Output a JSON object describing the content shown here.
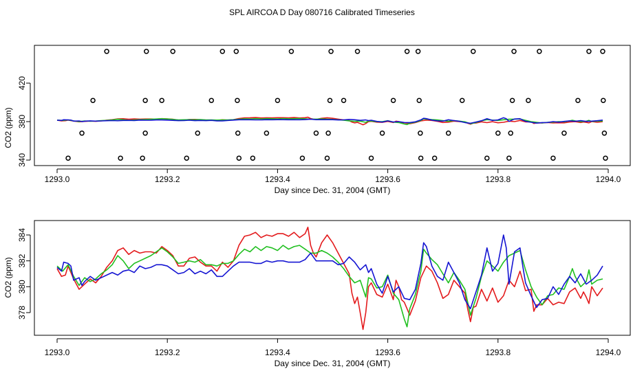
{
  "title": "SPL AIRCOA D  Day 080716  Calibrated Timeseries",
  "colors": {
    "series1": "#e31a1c",
    "series2": "#1fbf1f",
    "series3": "#1414d2",
    "axis": "#000000"
  },
  "chart_data": [
    {
      "type": "line",
      "title": "SPL AIRCOA D  Day 080716  Calibrated Timeseries",
      "xlabel": "Day since Dec. 31, 2004 (GMT)",
      "ylabel": "CO2 (ppm)",
      "xlim": [
        1293.0,
        1294.0
      ],
      "ylim": [
        337,
        460
      ],
      "xticks": [
        1293.0,
        1293.2,
        1293.4,
        1293.6,
        1293.8,
        1294.0
      ],
      "xtick_labels": [
        "1293.0",
        "1293.2",
        "1293.4",
        "1293.6",
        "1293.8",
        "1294.0"
      ],
      "yticks": [
        340,
        380,
        420
      ],
      "ytick_labels": [
        "340",
        "380",
        "420"
      ],
      "grid": false,
      "markers": {
        "style": "open-circle",
        "points": [
          [
            1293.02,
            342
          ],
          [
            1293.045,
            368
          ],
          [
            1293.065,
            402
          ],
          [
            1293.09,
            453
          ],
          [
            1293.115,
            342
          ],
          [
            1293.155,
            342
          ],
          [
            1293.16,
            368
          ],
          [
            1293.16,
            402
          ],
          [
            1293.162,
            453
          ],
          [
            1293.19,
            402
          ],
          [
            1293.21,
            453
          ],
          [
            1293.235,
            342
          ],
          [
            1293.255,
            368
          ],
          [
            1293.28,
            402
          ],
          [
            1293.3,
            453
          ],
          [
            1293.325,
            453
          ],
          [
            1293.327,
            402
          ],
          [
            1293.328,
            368
          ],
          [
            1293.33,
            342
          ],
          [
            1293.355,
            342
          ],
          [
            1293.38,
            368
          ],
          [
            1293.4,
            402
          ],
          [
            1293.425,
            453
          ],
          [
            1293.445,
            342
          ],
          [
            1293.47,
            368
          ],
          [
            1293.49,
            342
          ],
          [
            1293.492,
            368
          ],
          [
            1293.495,
            402
          ],
          [
            1293.497,
            453
          ],
          [
            1293.52,
            402
          ],
          [
            1293.545,
            453
          ],
          [
            1293.57,
            342
          ],
          [
            1293.59,
            368
          ],
          [
            1293.61,
            402
          ],
          [
            1293.635,
            453
          ],
          [
            1293.655,
            453
          ],
          [
            1293.657,
            402
          ],
          [
            1293.659,
            368
          ],
          [
            1293.66,
            342
          ],
          [
            1293.685,
            342
          ],
          [
            1293.71,
            368
          ],
          [
            1293.735,
            402
          ],
          [
            1293.755,
            453
          ],
          [
            1293.78,
            342
          ],
          [
            1293.8,
            368
          ],
          [
            1293.82,
            342
          ],
          [
            1293.823,
            368
          ],
          [
            1293.826,
            402
          ],
          [
            1293.829,
            453
          ],
          [
            1293.855,
            402
          ],
          [
            1293.875,
            453
          ],
          [
            1293.9,
            342
          ],
          [
            1293.92,
            368
          ],
          [
            1293.945,
            402
          ],
          [
            1293.965,
            453
          ],
          [
            1293.99,
            453
          ],
          [
            1293.991,
            402
          ],
          [
            1293.993,
            368
          ],
          [
            1293.995,
            342
          ]
        ]
      },
      "series": [
        {
          "values_ref": "series_red"
        },
        {
          "values_ref": "series_green"
        },
        {
          "values_ref": "series_blue"
        }
      ]
    },
    {
      "type": "line",
      "xlabel": "Day since Dec. 31, 2004 (GMT)",
      "ylabel": "CO2 (ppm)",
      "xlim": [
        1293.0,
        1294.0
      ],
      "ylim": [
        376.0,
        384.8
      ],
      "xticks": [
        1293.0,
        1293.2,
        1293.4,
        1293.6,
        1293.8,
        1294.0
      ],
      "xtick_labels": [
        "1293.0",
        "1293.2",
        "1293.4",
        "1293.6",
        "1293.8",
        "1294.0"
      ],
      "yticks": [
        378,
        380,
        382,
        384
      ],
      "ytick_labels": [
        "378",
        "380",
        "382",
        "384"
      ],
      "grid": false,
      "series": [
        {
          "values_ref": "series_red"
        },
        {
          "values_ref": "series_green"
        },
        {
          "values_ref": "series_blue"
        }
      ]
    }
  ],
  "series_red": [
    [
      1293.0,
      381.4
    ],
    [
      1293.008,
      380.8
    ],
    [
      1293.015,
      380.9
    ],
    [
      1293.02,
      381.6
    ],
    [
      1293.03,
      380.6
    ],
    [
      1293.04,
      379.8
    ],
    [
      1293.05,
      380.2
    ],
    [
      1293.06,
      380.6
    ],
    [
      1293.07,
      380.3
    ],
    [
      1293.08,
      380.8
    ],
    [
      1293.09,
      381.5
    ],
    [
      1293.1,
      382.0
    ],
    [
      1293.11,
      382.8
    ],
    [
      1293.12,
      383.0
    ],
    [
      1293.13,
      382.5
    ],
    [
      1293.14,
      382.8
    ],
    [
      1293.15,
      382.6
    ],
    [
      1293.16,
      382.7
    ],
    [
      1293.17,
      382.7
    ],
    [
      1293.18,
      382.6
    ],
    [
      1293.19,
      383.1
    ],
    [
      1293.2,
      382.8
    ],
    [
      1293.21,
      382.4
    ],
    [
      1293.22,
      381.6
    ],
    [
      1293.23,
      381.6
    ],
    [
      1293.24,
      382.2
    ],
    [
      1293.25,
      382.3
    ],
    [
      1293.26,
      381.9
    ],
    [
      1293.27,
      381.6
    ],
    [
      1293.28,
      381.6
    ],
    [
      1293.29,
      381.2
    ],
    [
      1293.3,
      381.9
    ],
    [
      1293.31,
      381.5
    ],
    [
      1293.32,
      382.0
    ],
    [
      1293.33,
      383.2
    ],
    [
      1293.34,
      383.9
    ],
    [
      1293.35,
      384.0
    ],
    [
      1293.36,
      384.2
    ],
    [
      1293.37,
      383.8
    ],
    [
      1293.38,
      384.0
    ],
    [
      1293.39,
      383.9
    ],
    [
      1293.4,
      384.1
    ],
    [
      1293.41,
      384.1
    ],
    [
      1293.42,
      383.9
    ],
    [
      1293.43,
      384.2
    ],
    [
      1293.44,
      383.8
    ],
    [
      1293.45,
      384.1
    ],
    [
      1293.455,
      384.6
    ],
    [
      1293.46,
      383.2
    ],
    [
      1293.465,
      382.6
    ],
    [
      1293.47,
      382.3
    ],
    [
      1293.48,
      383.4
    ],
    [
      1293.49,
      384.0
    ],
    [
      1293.5,
      383.4
    ],
    [
      1293.51,
      382.6
    ],
    [
      1293.52,
      381.8
    ],
    [
      1293.53,
      381.0
    ],
    [
      1293.535,
      379.5
    ],
    [
      1293.54,
      378.7
    ],
    [
      1293.545,
      379.2
    ],
    [
      1293.55,
      378.0
    ],
    [
      1293.555,
      376.7
    ],
    [
      1293.56,
      378.0
    ],
    [
      1293.565,
      380.0
    ],
    [
      1293.57,
      380.3
    ],
    [
      1293.58,
      379.4
    ],
    [
      1293.59,
      379.2
    ],
    [
      1293.6,
      380.2
    ],
    [
      1293.61,
      379.0
    ],
    [
      1293.615,
      380.5
    ],
    [
      1293.62,
      380.0
    ],
    [
      1293.625,
      379.0
    ],
    [
      1293.63,
      378.8
    ],
    [
      1293.64,
      377.8
    ],
    [
      1293.65,
      378.9
    ],
    [
      1293.66,
      380.7
    ],
    [
      1293.67,
      381.6
    ],
    [
      1293.68,
      381.2
    ],
    [
      1293.69,
      380.3
    ],
    [
      1293.7,
      379.1
    ],
    [
      1293.71,
      379.4
    ],
    [
      1293.72,
      380.5
    ],
    [
      1293.73,
      380.0
    ],
    [
      1293.74,
      379.5
    ],
    [
      1293.745,
      378.3
    ],
    [
      1293.75,
      377.3
    ],
    [
      1293.755,
      378.4
    ],
    [
      1293.76,
      378.5
    ],
    [
      1293.77,
      379.8
    ],
    [
      1293.78,
      378.9
    ],
    [
      1293.79,
      379.9
    ],
    [
      1293.8,
      378.8
    ],
    [
      1293.81,
      379.3
    ],
    [
      1293.82,
      380.5
    ],
    [
      1293.83,
      380.0
    ],
    [
      1293.84,
      381.2
    ],
    [
      1293.85,
      379.7
    ],
    [
      1293.86,
      379.8
    ],
    [
      1293.865,
      378.1
    ],
    [
      1293.87,
      378.6
    ],
    [
      1293.88,
      378.6
    ],
    [
      1293.89,
      379.1
    ],
    [
      1293.9,
      378.6
    ],
    [
      1293.91,
      378.8
    ],
    [
      1293.92,
      378.7
    ],
    [
      1293.93,
      379.6
    ],
    [
      1293.94,
      379.9
    ],
    [
      1293.95,
      379.1
    ],
    [
      1293.955,
      379.6
    ],
    [
      1293.96,
      379.2
    ],
    [
      1293.965,
      378.7
    ],
    [
      1293.97,
      380.0
    ],
    [
      1293.98,
      379.3
    ],
    [
      1293.99,
      379.9
    ]
  ],
  "series_green": [
    [
      1293.0,
      381.6
    ],
    [
      1293.01,
      381.2
    ],
    [
      1293.02,
      381.7
    ],
    [
      1293.03,
      380.8
    ],
    [
      1293.04,
      380.1
    ],
    [
      1293.05,
      380.7
    ],
    [
      1293.06,
      380.4
    ],
    [
      1293.07,
      380.6
    ],
    [
      1293.08,
      381.0
    ],
    [
      1293.09,
      381.3
    ],
    [
      1293.1,
      381.7
    ],
    [
      1293.11,
      382.4
    ],
    [
      1293.12,
      382.0
    ],
    [
      1293.13,
      381.4
    ],
    [
      1293.14,
      381.8
    ],
    [
      1293.15,
      382.0
    ],
    [
      1293.16,
      382.2
    ],
    [
      1293.17,
      382.4
    ],
    [
      1293.18,
      382.7
    ],
    [
      1293.19,
      383.0
    ],
    [
      1293.2,
      382.7
    ],
    [
      1293.21,
      382.3
    ],
    [
      1293.22,
      381.8
    ],
    [
      1293.23,
      381.9
    ],
    [
      1293.24,
      382.0
    ],
    [
      1293.25,
      381.9
    ],
    [
      1293.26,
      382.1
    ],
    [
      1293.27,
      381.7
    ],
    [
      1293.28,
      381.7
    ],
    [
      1293.29,
      381.6
    ],
    [
      1293.3,
      381.8
    ],
    [
      1293.31,
      381.8
    ],
    [
      1293.32,
      382.0
    ],
    [
      1293.33,
      382.5
    ],
    [
      1293.34,
      382.9
    ],
    [
      1293.35,
      382.7
    ],
    [
      1293.36,
      383.1
    ],
    [
      1293.37,
      382.8
    ],
    [
      1293.38,
      383.1
    ],
    [
      1293.39,
      383.0
    ],
    [
      1293.4,
      382.8
    ],
    [
      1293.41,
      383.2
    ],
    [
      1293.42,
      382.9
    ],
    [
      1293.43,
      383.1
    ],
    [
      1293.44,
      383.2
    ],
    [
      1293.45,
      382.9
    ],
    [
      1293.46,
      382.6
    ],
    [
      1293.47,
      382.6
    ],
    [
      1293.48,
      382.8
    ],
    [
      1293.49,
      382.6
    ],
    [
      1293.5,
      382.3
    ],
    [
      1293.51,
      381.9
    ],
    [
      1293.52,
      381.4
    ],
    [
      1293.53,
      380.8
    ],
    [
      1293.54,
      380.3
    ],
    [
      1293.55,
      380.5
    ],
    [
      1293.56,
      379.2
    ],
    [
      1293.565,
      380.7
    ],
    [
      1293.57,
      380.6
    ],
    [
      1293.58,
      379.9
    ],
    [
      1293.59,
      380.0
    ],
    [
      1293.6,
      380.9
    ],
    [
      1293.61,
      379.5
    ],
    [
      1293.62,
      379.0
    ],
    [
      1293.63,
      377.5
    ],
    [
      1293.635,
      376.9
    ],
    [
      1293.64,
      378.3
    ],
    [
      1293.65,
      379.4
    ],
    [
      1293.66,
      381.2
    ],
    [
      1293.665,
      382.9
    ],
    [
      1293.67,
      382.6
    ],
    [
      1293.68,
      382.1
    ],
    [
      1293.69,
      381.7
    ],
    [
      1293.7,
      381.0
    ],
    [
      1293.71,
      380.3
    ],
    [
      1293.72,
      381.1
    ],
    [
      1293.73,
      380.5
    ],
    [
      1293.74,
      379.8
    ],
    [
      1293.75,
      377.8
    ],
    [
      1293.76,
      379.1
    ],
    [
      1293.77,
      380.8
    ],
    [
      1293.78,
      382.0
    ],
    [
      1293.79,
      381.6
    ],
    [
      1293.8,
      381.2
    ],
    [
      1293.81,
      381.9
    ],
    [
      1293.82,
      382.4
    ],
    [
      1293.83,
      382.6
    ],
    [
      1293.84,
      382.8
    ],
    [
      1293.85,
      381.3
    ],
    [
      1293.86,
      380.0
    ],
    [
      1293.87,
      379.2
    ],
    [
      1293.88,
      378.6
    ],
    [
      1293.89,
      379.3
    ],
    [
      1293.9,
      379.4
    ],
    [
      1293.91,
      379.9
    ],
    [
      1293.92,
      379.8
    ],
    [
      1293.93,
      380.8
    ],
    [
      1293.935,
      381.4
    ],
    [
      1293.94,
      380.8
    ],
    [
      1293.95,
      380.0
    ],
    [
      1293.96,
      380.4
    ],
    [
      1293.965,
      381.3
    ],
    [
      1293.97,
      380.2
    ],
    [
      1293.98,
      380.5
    ],
    [
      1293.99,
      380.6
    ]
  ],
  "series_blue": [
    [
      1293.0,
      381.5
    ],
    [
      1293.008,
      381.2
    ],
    [
      1293.012,
      381.9
    ],
    [
      1293.02,
      381.8
    ],
    [
      1293.025,
      381.6
    ],
    [
      1293.03,
      380.5
    ],
    [
      1293.04,
      380.7
    ],
    [
      1293.045,
      380.1
    ],
    [
      1293.05,
      380.4
    ],
    [
      1293.06,
      380.8
    ],
    [
      1293.07,
      380.5
    ],
    [
      1293.08,
      380.7
    ],
    [
      1293.09,
      380.9
    ],
    [
      1293.1,
      381.1
    ],
    [
      1293.11,
      380.9
    ],
    [
      1293.12,
      381.2
    ],
    [
      1293.13,
      381.3
    ],
    [
      1293.14,
      381.1
    ],
    [
      1293.15,
      381.6
    ],
    [
      1293.16,
      381.4
    ],
    [
      1293.17,
      381.5
    ],
    [
      1293.18,
      381.7
    ],
    [
      1293.19,
      381.7
    ],
    [
      1293.2,
      381.6
    ],
    [
      1293.21,
      381.3
    ],
    [
      1293.22,
      381.0
    ],
    [
      1293.23,
      381.1
    ],
    [
      1293.24,
      381.4
    ],
    [
      1293.25,
      381.0
    ],
    [
      1293.26,
      381.2
    ],
    [
      1293.27,
      381.0
    ],
    [
      1293.28,
      381.3
    ],
    [
      1293.29,
      380.8
    ],
    [
      1293.3,
      380.8
    ],
    [
      1293.31,
      381.2
    ],
    [
      1293.32,
      381.6
    ],
    [
      1293.33,
      381.9
    ],
    [
      1293.34,
      381.9
    ],
    [
      1293.35,
      381.9
    ],
    [
      1293.36,
      381.8
    ],
    [
      1293.37,
      381.8
    ],
    [
      1293.38,
      382.0
    ],
    [
      1293.39,
      381.9
    ],
    [
      1293.4,
      382.0
    ],
    [
      1293.41,
      382.0
    ],
    [
      1293.42,
      381.9
    ],
    [
      1293.43,
      381.9
    ],
    [
      1293.44,
      381.9
    ],
    [
      1293.45,
      382.1
    ],
    [
      1293.46,
      382.6
    ],
    [
      1293.47,
      382.0
    ],
    [
      1293.48,
      382.0
    ],
    [
      1293.49,
      382.0
    ],
    [
      1293.5,
      382.0
    ],
    [
      1293.51,
      381.7
    ],
    [
      1293.52,
      381.8
    ],
    [
      1293.53,
      382.3
    ],
    [
      1293.54,
      381.9
    ],
    [
      1293.55,
      381.3
    ],
    [
      1293.56,
      381.7
    ],
    [
      1293.565,
      381.1
    ],
    [
      1293.57,
      381.4
    ],
    [
      1293.58,
      380.2
    ],
    [
      1293.59,
      379.5
    ],
    [
      1293.6,
      380.8
    ],
    [
      1293.61,
      379.6
    ],
    [
      1293.62,
      380.0
    ],
    [
      1293.63,
      379.1
    ],
    [
      1293.64,
      379.0
    ],
    [
      1293.65,
      379.8
    ],
    [
      1293.66,
      381.8
    ],
    [
      1293.665,
      383.4
    ],
    [
      1293.67,
      383.1
    ],
    [
      1293.68,
      381.6
    ],
    [
      1293.69,
      380.8
    ],
    [
      1293.7,
      380.5
    ],
    [
      1293.71,
      381.9
    ],
    [
      1293.72,
      381.1
    ],
    [
      1293.73,
      380.3
    ],
    [
      1293.74,
      379.0
    ],
    [
      1293.75,
      378.3
    ],
    [
      1293.76,
      379.6
    ],
    [
      1293.77,
      380.9
    ],
    [
      1293.78,
      383.0
    ],
    [
      1293.79,
      381.2
    ],
    [
      1293.8,
      381.8
    ],
    [
      1293.81,
      384.0
    ],
    [
      1293.815,
      383.0
    ],
    [
      1293.82,
      380.2
    ],
    [
      1293.83,
      382.7
    ],
    [
      1293.84,
      383.0
    ],
    [
      1293.845,
      381.6
    ],
    [
      1293.85,
      380.3
    ],
    [
      1293.86,
      379.3
    ],
    [
      1293.87,
      378.4
    ],
    [
      1293.88,
      379.0
    ],
    [
      1293.89,
      379.1
    ],
    [
      1293.9,
      380.0
    ],
    [
      1293.91,
      379.4
    ],
    [
      1293.92,
      380.2
    ],
    [
      1293.93,
      380.8
    ],
    [
      1293.94,
      380.3
    ],
    [
      1293.95,
      381.0
    ],
    [
      1293.96,
      380.2
    ],
    [
      1293.97,
      380.5
    ],
    [
      1293.98,
      380.9
    ],
    [
      1293.99,
      381.6
    ]
  ]
}
